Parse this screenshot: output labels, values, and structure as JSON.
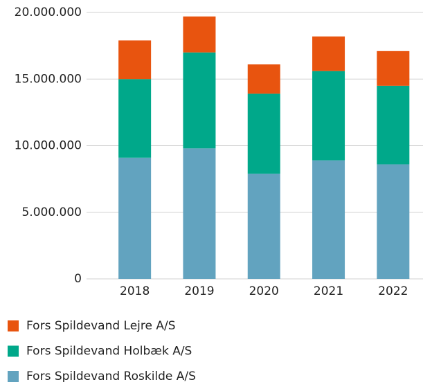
{
  "chart_data": {
    "type": "stacked_bar",
    "categories": [
      "2018",
      "2019",
      "2020",
      "2021",
      "2022"
    ],
    "series": [
      {
        "name": "Fors Spildevand Roskilde A/S",
        "color": "#62a3bf",
        "values": [
          9100000,
          9800000,
          7900000,
          8900000,
          8600000
        ]
      },
      {
        "name": "Fors Spildevand Holbæk A/S",
        "color": "#00a88a",
        "values": [
          5900000,
          7200000,
          6000000,
          6700000,
          5900000
        ]
      },
      {
        "name": "Fors Spildevand Lejre A/S",
        "color": "#e8540f",
        "values": [
          2900000,
          2700000,
          2200000,
          2600000,
          2600000
        ]
      }
    ],
    "ylim": [
      0,
      20000000
    ],
    "yticks": [
      0,
      {
        "value": 5000000,
        "label": "5.000.000"
      },
      {
        "value": 10000000,
        "label": "10.000.000"
      },
      {
        "value": 15000000,
        "label": "15.000.000"
      },
      {
        "value": 20000000,
        "label": "20.000.000"
      }
    ],
    "grid": true,
    "legend": "bottom"
  }
}
